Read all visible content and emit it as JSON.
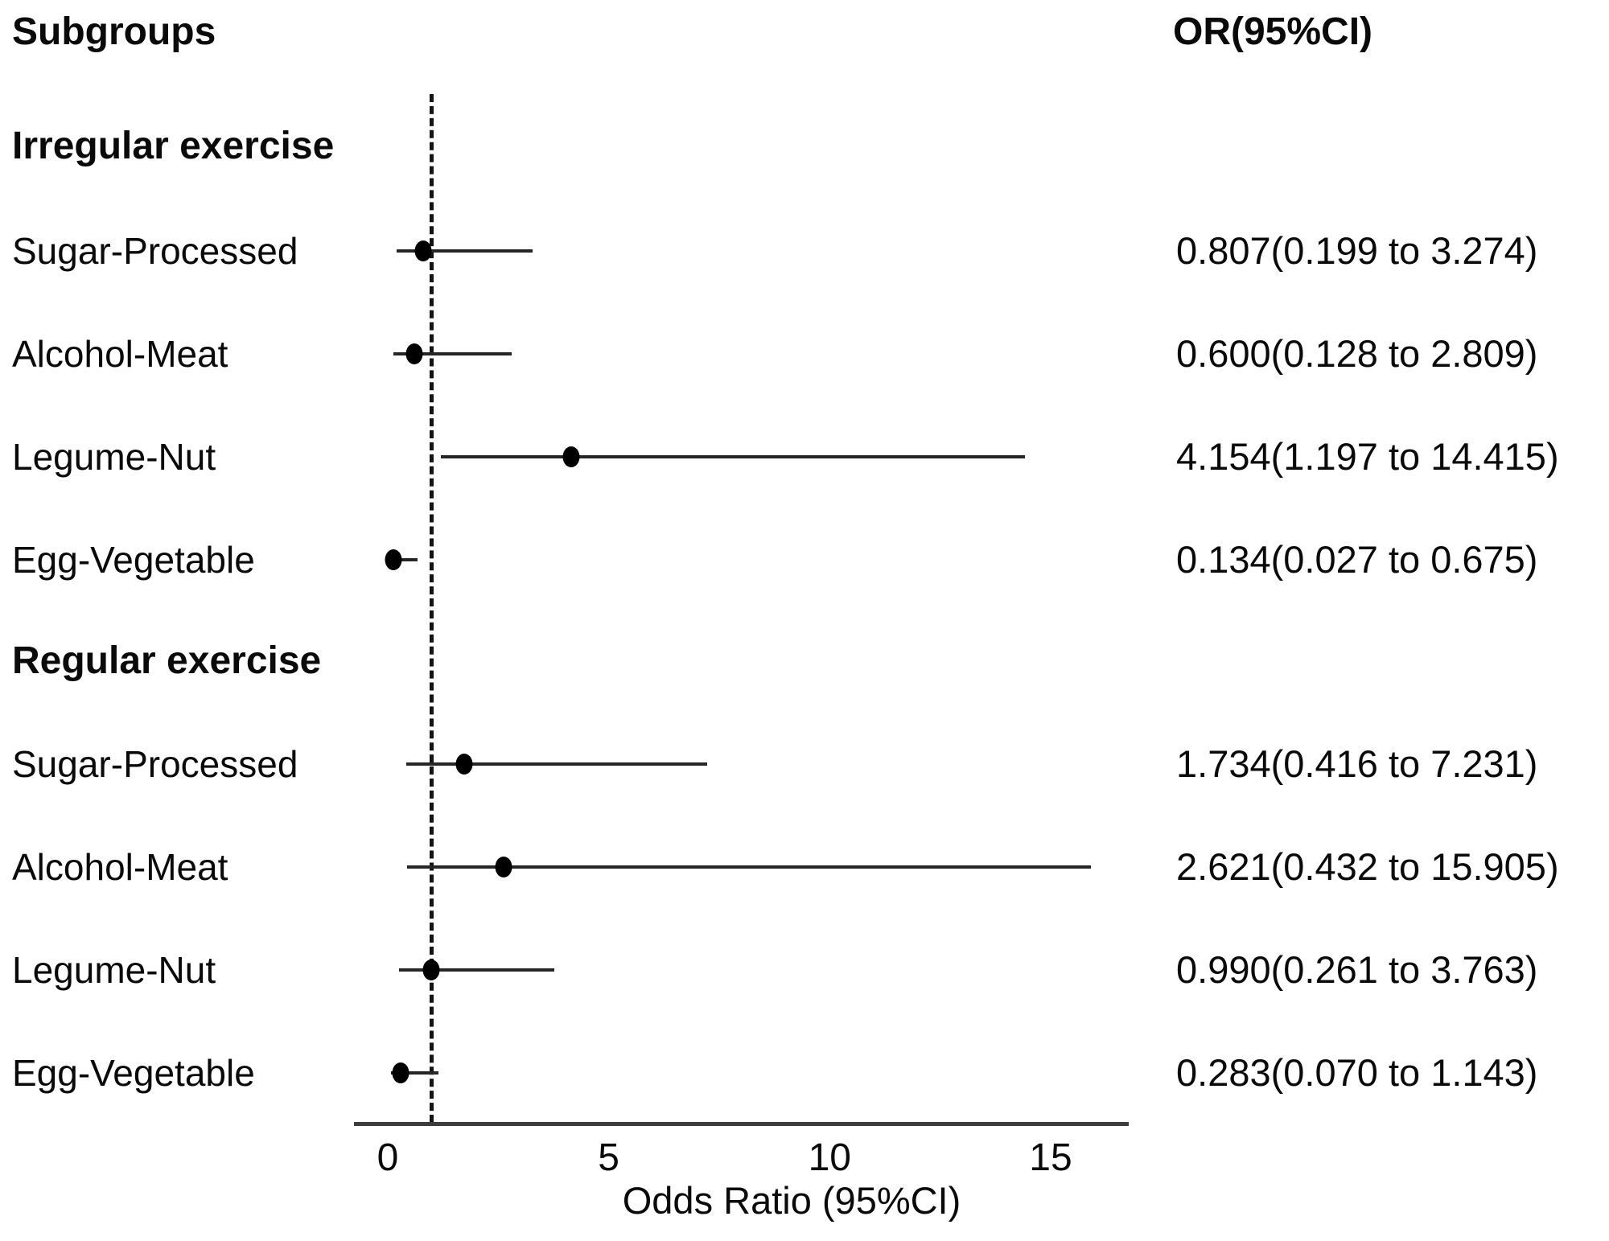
{
  "figure": {
    "column_headers": {
      "left": "Subgroups",
      "right": "OR(95%CI)"
    }
  },
  "chart_data": {
    "type": "scatter",
    "subtype": "forest_plot",
    "title": "",
    "xlabel": "Odds Ratio (95%CI)",
    "xticks": [
      "0",
      "5",
      "10",
      "15"
    ],
    "xtick_values": [
      0,
      5,
      10,
      15
    ],
    "xlim": [
      -0.8,
      16.8
    ],
    "reference_line_x": 1,
    "grid": false,
    "legend": "none",
    "marker_color": "#000000",
    "line_color": "#262626",
    "groups": [
      {
        "label": "Irregular exercise",
        "rows": [
          {
            "label": "Sugar-Processed",
            "or": 0.807,
            "ci_low": 0.199,
            "ci_high": 3.274,
            "or_text": "0.807(0.199 to 3.274)"
          },
          {
            "label": "Alcohol-Meat",
            "or": 0.6,
            "ci_low": 0.128,
            "ci_high": 2.809,
            "or_text": "0.600(0.128 to 2.809)"
          },
          {
            "label": "Legume-Nut",
            "or": 4.154,
            "ci_low": 1.197,
            "ci_high": 14.415,
            "or_text": "4.154(1.197 to 14.415)"
          },
          {
            "label": "Egg-Vegetable",
            "or": 0.134,
            "ci_low": 0.027,
            "ci_high": 0.675,
            "or_text": "0.134(0.027 to 0.675)"
          }
        ]
      },
      {
        "label": "Regular exercise",
        "rows": [
          {
            "label": "Sugar-Processed",
            "or": 1.734,
            "ci_low": 0.416,
            "ci_high": 7.231,
            "or_text": "1.734(0.416 to 7.231)"
          },
          {
            "label": "Alcohol-Meat",
            "or": 2.621,
            "ci_low": 0.432,
            "ci_high": 15.905,
            "or_text": "2.621(0.432 to 15.905)"
          },
          {
            "label": "Legume-Nut",
            "or": 0.99,
            "ci_low": 0.261,
            "ci_high": 3.763,
            "or_text": "0.990(0.261 to 3.763)"
          },
          {
            "label": "Egg-Vegetable",
            "or": 0.283,
            "ci_low": 0.07,
            "ci_high": 1.143,
            "or_text": "0.283(0.070 to 1.143)"
          }
        ]
      }
    ]
  }
}
